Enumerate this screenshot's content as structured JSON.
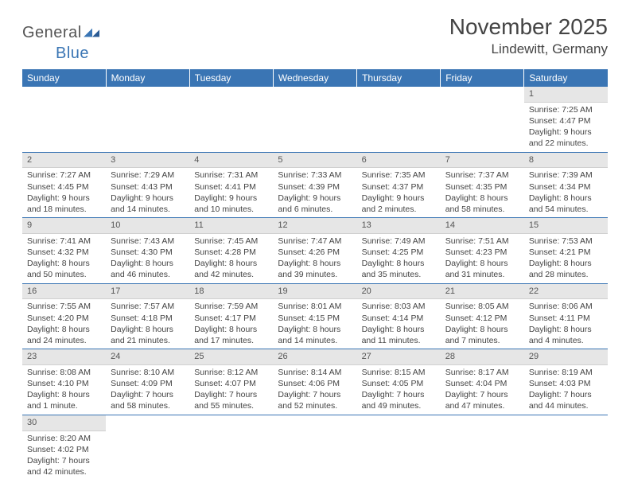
{
  "logo": {
    "part1": "General",
    "part2": "Blue"
  },
  "title": "November 2025",
  "location": "Lindewitt, Germany",
  "colors": {
    "header_bg": "#3a75b4",
    "header_text": "#ffffff",
    "daynum_bg": "#e6e6e6",
    "row_sep": "#3a75b4",
    "body_text": "#444444"
  },
  "dayNames": [
    "Sunday",
    "Monday",
    "Tuesday",
    "Wednesday",
    "Thursday",
    "Friday",
    "Saturday"
  ],
  "grid": [
    [
      null,
      null,
      null,
      null,
      null,
      null,
      {
        "n": "1",
        "sunrise": "Sunrise: 7:25 AM",
        "sunset": "Sunset: 4:47 PM",
        "d1": "Daylight: 9 hours",
        "d2": "and 22 minutes."
      }
    ],
    [
      {
        "n": "2",
        "sunrise": "Sunrise: 7:27 AM",
        "sunset": "Sunset: 4:45 PM",
        "d1": "Daylight: 9 hours",
        "d2": "and 18 minutes."
      },
      {
        "n": "3",
        "sunrise": "Sunrise: 7:29 AM",
        "sunset": "Sunset: 4:43 PM",
        "d1": "Daylight: 9 hours",
        "d2": "and 14 minutes."
      },
      {
        "n": "4",
        "sunrise": "Sunrise: 7:31 AM",
        "sunset": "Sunset: 4:41 PM",
        "d1": "Daylight: 9 hours",
        "d2": "and 10 minutes."
      },
      {
        "n": "5",
        "sunrise": "Sunrise: 7:33 AM",
        "sunset": "Sunset: 4:39 PM",
        "d1": "Daylight: 9 hours",
        "d2": "and 6 minutes."
      },
      {
        "n": "6",
        "sunrise": "Sunrise: 7:35 AM",
        "sunset": "Sunset: 4:37 PM",
        "d1": "Daylight: 9 hours",
        "d2": "and 2 minutes."
      },
      {
        "n": "7",
        "sunrise": "Sunrise: 7:37 AM",
        "sunset": "Sunset: 4:35 PM",
        "d1": "Daylight: 8 hours",
        "d2": "and 58 minutes."
      },
      {
        "n": "8",
        "sunrise": "Sunrise: 7:39 AM",
        "sunset": "Sunset: 4:34 PM",
        "d1": "Daylight: 8 hours",
        "d2": "and 54 minutes."
      }
    ],
    [
      {
        "n": "9",
        "sunrise": "Sunrise: 7:41 AM",
        "sunset": "Sunset: 4:32 PM",
        "d1": "Daylight: 8 hours",
        "d2": "and 50 minutes."
      },
      {
        "n": "10",
        "sunrise": "Sunrise: 7:43 AM",
        "sunset": "Sunset: 4:30 PM",
        "d1": "Daylight: 8 hours",
        "d2": "and 46 minutes."
      },
      {
        "n": "11",
        "sunrise": "Sunrise: 7:45 AM",
        "sunset": "Sunset: 4:28 PM",
        "d1": "Daylight: 8 hours",
        "d2": "and 42 minutes."
      },
      {
        "n": "12",
        "sunrise": "Sunrise: 7:47 AM",
        "sunset": "Sunset: 4:26 PM",
        "d1": "Daylight: 8 hours",
        "d2": "and 39 minutes."
      },
      {
        "n": "13",
        "sunrise": "Sunrise: 7:49 AM",
        "sunset": "Sunset: 4:25 PM",
        "d1": "Daylight: 8 hours",
        "d2": "and 35 minutes."
      },
      {
        "n": "14",
        "sunrise": "Sunrise: 7:51 AM",
        "sunset": "Sunset: 4:23 PM",
        "d1": "Daylight: 8 hours",
        "d2": "and 31 minutes."
      },
      {
        "n": "15",
        "sunrise": "Sunrise: 7:53 AM",
        "sunset": "Sunset: 4:21 PM",
        "d1": "Daylight: 8 hours",
        "d2": "and 28 minutes."
      }
    ],
    [
      {
        "n": "16",
        "sunrise": "Sunrise: 7:55 AM",
        "sunset": "Sunset: 4:20 PM",
        "d1": "Daylight: 8 hours",
        "d2": "and 24 minutes."
      },
      {
        "n": "17",
        "sunrise": "Sunrise: 7:57 AM",
        "sunset": "Sunset: 4:18 PM",
        "d1": "Daylight: 8 hours",
        "d2": "and 21 minutes."
      },
      {
        "n": "18",
        "sunrise": "Sunrise: 7:59 AM",
        "sunset": "Sunset: 4:17 PM",
        "d1": "Daylight: 8 hours",
        "d2": "and 17 minutes."
      },
      {
        "n": "19",
        "sunrise": "Sunrise: 8:01 AM",
        "sunset": "Sunset: 4:15 PM",
        "d1": "Daylight: 8 hours",
        "d2": "and 14 minutes."
      },
      {
        "n": "20",
        "sunrise": "Sunrise: 8:03 AM",
        "sunset": "Sunset: 4:14 PM",
        "d1": "Daylight: 8 hours",
        "d2": "and 11 minutes."
      },
      {
        "n": "21",
        "sunrise": "Sunrise: 8:05 AM",
        "sunset": "Sunset: 4:12 PM",
        "d1": "Daylight: 8 hours",
        "d2": "and 7 minutes."
      },
      {
        "n": "22",
        "sunrise": "Sunrise: 8:06 AM",
        "sunset": "Sunset: 4:11 PM",
        "d1": "Daylight: 8 hours",
        "d2": "and 4 minutes."
      }
    ],
    [
      {
        "n": "23",
        "sunrise": "Sunrise: 8:08 AM",
        "sunset": "Sunset: 4:10 PM",
        "d1": "Daylight: 8 hours",
        "d2": "and 1 minute."
      },
      {
        "n": "24",
        "sunrise": "Sunrise: 8:10 AM",
        "sunset": "Sunset: 4:09 PM",
        "d1": "Daylight: 7 hours",
        "d2": "and 58 minutes."
      },
      {
        "n": "25",
        "sunrise": "Sunrise: 8:12 AM",
        "sunset": "Sunset: 4:07 PM",
        "d1": "Daylight: 7 hours",
        "d2": "and 55 minutes."
      },
      {
        "n": "26",
        "sunrise": "Sunrise: 8:14 AM",
        "sunset": "Sunset: 4:06 PM",
        "d1": "Daylight: 7 hours",
        "d2": "and 52 minutes."
      },
      {
        "n": "27",
        "sunrise": "Sunrise: 8:15 AM",
        "sunset": "Sunset: 4:05 PM",
        "d1": "Daylight: 7 hours",
        "d2": "and 49 minutes."
      },
      {
        "n": "28",
        "sunrise": "Sunrise: 8:17 AM",
        "sunset": "Sunset: 4:04 PM",
        "d1": "Daylight: 7 hours",
        "d2": "and 47 minutes."
      },
      {
        "n": "29",
        "sunrise": "Sunrise: 8:19 AM",
        "sunset": "Sunset: 4:03 PM",
        "d1": "Daylight: 7 hours",
        "d2": "and 44 minutes."
      }
    ],
    [
      {
        "n": "30",
        "sunrise": "Sunrise: 8:20 AM",
        "sunset": "Sunset: 4:02 PM",
        "d1": "Daylight: 7 hours",
        "d2": "and 42 minutes."
      },
      null,
      null,
      null,
      null,
      null,
      null
    ]
  ]
}
